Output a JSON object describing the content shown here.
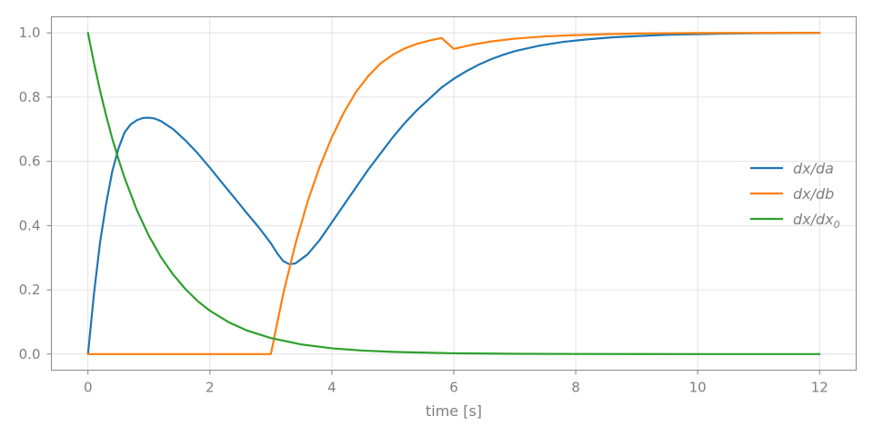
{
  "chart_data": {
    "type": "line",
    "title": "",
    "xlabel": "time [s]",
    "ylabel": "",
    "xlim": [
      -0.6,
      12.6
    ],
    "ylim": [
      -0.05,
      1.05
    ],
    "xticks": [
      0,
      2,
      4,
      6,
      8,
      10,
      12
    ],
    "yticks": [
      0.0,
      0.2,
      0.4,
      0.6,
      0.8,
      1.0
    ],
    "xtick_labels": [
      "0",
      "2",
      "4",
      "6",
      "8",
      "10",
      "12"
    ],
    "ytick_labels": [
      "0.0",
      "0.2",
      "0.4",
      "0.6",
      "0.8",
      "1.0"
    ],
    "grid": true,
    "legend_position": "center-right",
    "series": [
      {
        "name": "dx/da",
        "label_main": "dx/da",
        "label_sub": "",
        "color": "#1f77b4",
        "x": [
          0,
          0.1,
          0.2,
          0.3,
          0.4,
          0.5,
          0.6,
          0.7,
          0.8,
          0.9,
          1.0,
          1.1,
          1.2,
          1.4,
          1.6,
          1.8,
          2.0,
          2.2,
          2.4,
          2.6,
          2.8,
          3.0,
          3.1,
          3.2,
          3.3,
          3.4,
          3.6,
          3.8,
          4.0,
          4.2,
          4.4,
          4.6,
          4.8,
          5.0,
          5.2,
          5.4,
          5.6,
          5.8,
          6.0,
          6.2,
          6.4,
          6.6,
          6.8,
          7.0,
          7.4,
          7.8,
          8.2,
          8.6,
          9.0,
          9.5,
          10.0,
          10.5,
          11.0,
          11.5,
          12.0
        ],
        "y": [
          0.0,
          0.19,
          0.35,
          0.47,
          0.57,
          0.64,
          0.69,
          0.715,
          0.728,
          0.735,
          0.736,
          0.733,
          0.725,
          0.7,
          0.665,
          0.625,
          0.58,
          0.533,
          0.487,
          0.44,
          0.395,
          0.345,
          0.315,
          0.29,
          0.28,
          0.282,
          0.31,
          0.355,
          0.41,
          0.465,
          0.52,
          0.575,
          0.625,
          0.675,
          0.72,
          0.76,
          0.795,
          0.83,
          0.857,
          0.88,
          0.9,
          0.917,
          0.931,
          0.943,
          0.96,
          0.972,
          0.98,
          0.986,
          0.99,
          0.994,
          0.996,
          0.998,
          0.999,
          0.9995,
          1.0
        ]
      },
      {
        "name": "dx/db",
        "label_main": "dx/db",
        "label_sub": "",
        "color": "#ff7f0e",
        "x": [
          0,
          0.5,
          1.0,
          1.5,
          2.0,
          2.5,
          3.0,
          3.2,
          3.4,
          3.6,
          3.8,
          4.0,
          4.2,
          4.4,
          4.6,
          4.8,
          5.0,
          5.2,
          5.4,
          5.6,
          5.8,
          6.0,
          6.3,
          6.6,
          7.0,
          7.5,
          8.0,
          8.5,
          9.0,
          9.5,
          10.0,
          11.0,
          12.0
        ],
        "y": [
          0.0,
          0.0,
          0.0,
          0.0,
          0.0,
          0.0,
          0.0,
          0.185,
          0.341,
          0.473,
          0.583,
          0.675,
          0.753,
          0.817,
          0.866,
          0.905,
          0.932,
          0.952,
          0.966,
          0.976,
          0.984,
          0.95,
          0.963,
          0.973,
          0.982,
          0.989,
          0.993,
          0.996,
          0.998,
          0.999,
          0.9995,
          1.0,
          1.0
        ]
      },
      {
        "name": "dx/dx0",
        "label_main": "dx/dx",
        "label_sub": "0",
        "color": "#2ca02c",
        "x": [
          0,
          0.1,
          0.2,
          0.3,
          0.4,
          0.5,
          0.6,
          0.8,
          1.0,
          1.2,
          1.4,
          1.6,
          1.8,
          2.0,
          2.3,
          2.6,
          3.0,
          3.5,
          4.0,
          4.5,
          5.0,
          6.0,
          7.0,
          8.0,
          9.0,
          10.0,
          11.0,
          12.0
        ],
        "y": [
          1.0,
          0.905,
          0.819,
          0.741,
          0.67,
          0.607,
          0.549,
          0.449,
          0.368,
          0.301,
          0.247,
          0.202,
          0.165,
          0.135,
          0.1,
          0.074,
          0.05,
          0.03,
          0.018,
          0.011,
          0.007,
          0.0025,
          0.0009,
          0.0003,
          0.0001,
          0.0,
          0.0,
          0.0
        ]
      }
    ]
  }
}
